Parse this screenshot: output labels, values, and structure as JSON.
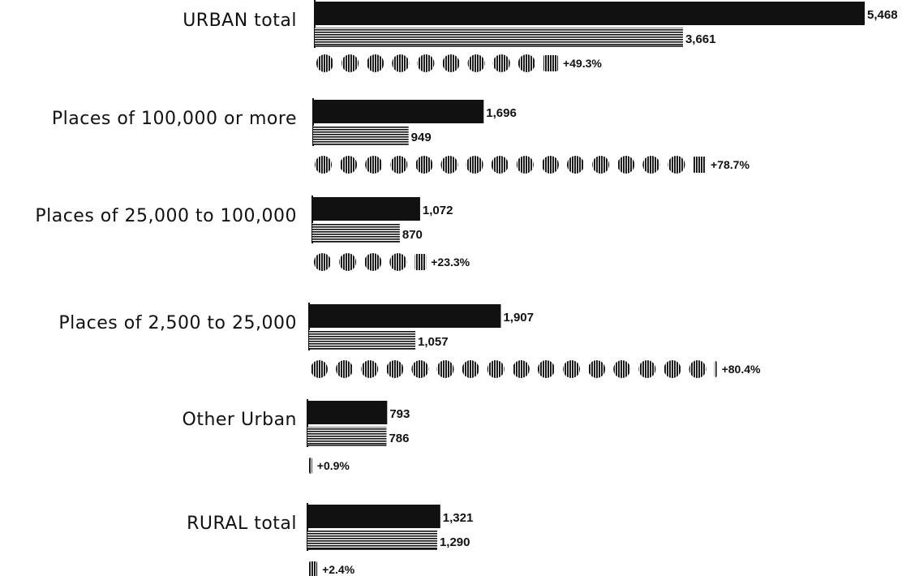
{
  "chart_data": {
    "type": "bar",
    "title": "",
    "xlabel": "",
    "ylabel": "",
    "xlim": [
      0,
      5468
    ],
    "grid": false,
    "legend": "none",
    "categories": [
      "URBAN total",
      "Places of 100,000 or more",
      "Places of 25,000 to 100,000",
      "Places of 2,500 to 25,000",
      "Other Urban",
      "RURAL total"
    ],
    "series": [
      {
        "style": "solid",
        "color": "#111111",
        "values": [
          5468,
          1696,
          1072,
          1907,
          793,
          1321
        ],
        "labels": [
          "5,468",
          "1,696",
          "1,072",
          "1,907",
          "793",
          "1,321"
        ]
      },
      {
        "style": "horizontal-lines",
        "color": "#111111",
        "values": [
          3661,
          949,
          870,
          1057,
          786,
          1290
        ],
        "labels": [
          "3,661",
          "949",
          "870",
          "1,057",
          "786",
          "1,290"
        ]
      }
    ],
    "percent_change": {
      "style": "striped-dots",
      "values": [
        49.3,
        78.7,
        23.3,
        80.4,
        0.9,
        2.4
      ],
      "labels": [
        "+49.3%",
        "+78.7%",
        "+23.3%",
        "+80.4%",
        "+0.9%",
        "+2.4%"
      ]
    }
  }
}
